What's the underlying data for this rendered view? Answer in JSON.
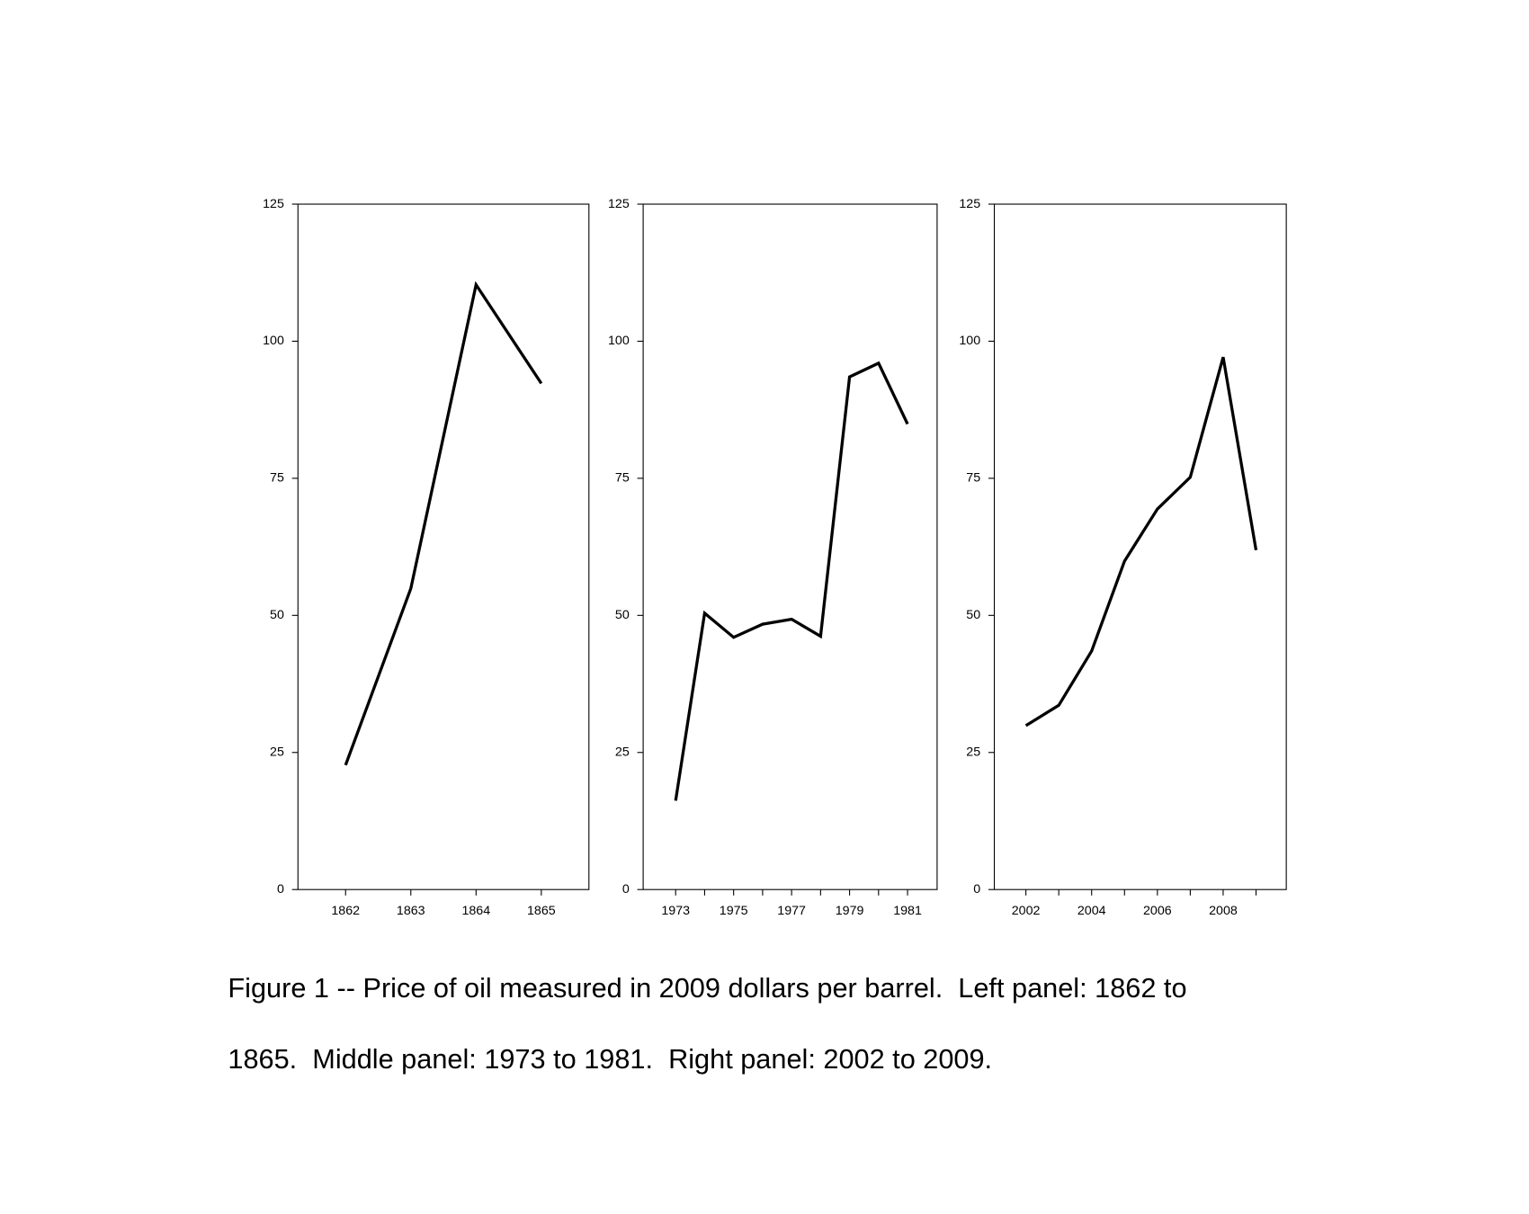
{
  "chart_data": [
    {
      "type": "line",
      "x": [
        1862,
        1863,
        1864,
        1865
      ],
      "values": [
        22.7,
        54.9,
        110.3,
        92.3
      ],
      "color": "#000000",
      "xlim": [
        1861.27,
        1865.73
      ],
      "xticks": [
        1862,
        1863,
        1864,
        1865
      ],
      "ylim": [
        0,
        125
      ],
      "yticks": [
        0,
        25,
        50,
        75,
        100,
        125
      ]
    },
    {
      "type": "line",
      "x": [
        1973,
        1974,
        1975,
        1976,
        1977,
        1978,
        1979,
        1980,
        1981
      ],
      "values": [
        16.2,
        50.4,
        46.0,
        48.4,
        49.3,
        46.2,
        93.5,
        96.0,
        84.9
      ],
      "color": "#000000",
      "xlim": [
        1971.88,
        1982.02
      ],
      "xticks": [
        1973,
        1975,
        1977,
        1979,
        1981
      ],
      "xminor_ticks": [
        1974,
        1976,
        1978,
        1980
      ],
      "ylim": [
        0,
        125
      ],
      "yticks": [
        0,
        25,
        50,
        75,
        100,
        125
      ]
    },
    {
      "type": "line",
      "x": [
        2002,
        2003,
        2004,
        2005,
        2006,
        2007,
        2008,
        2009
      ],
      "values": [
        29.9,
        33.6,
        43.5,
        59.9,
        69.4,
        75.2,
        97.1,
        61.9
      ],
      "color": "#000000",
      "xlim": [
        2001.04,
        2009.92
      ],
      "xticks": [
        2002,
        2004,
        2006,
        2008
      ],
      "xminor_ticks": [
        2003,
        2005,
        2007,
        2009
      ],
      "ylim": [
        0,
        125
      ],
      "yticks": [
        0,
        25,
        50,
        75,
        100,
        125
      ]
    }
  ],
  "caption": [
    "Figure 1 -- Price of oil measured in 2009 dollars per barrel.  Left panel: 1862 to",
    "1865.  Middle panel: 1973 to 1981.  Right panel: 2002 to 2009."
  ]
}
